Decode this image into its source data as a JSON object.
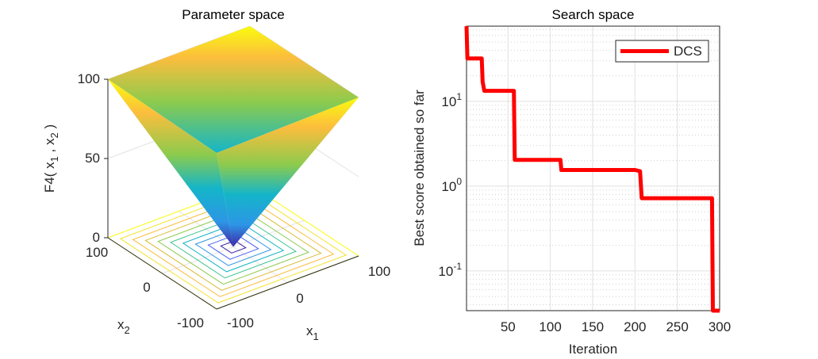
{
  "chart_data": [
    {
      "type": "surface",
      "title": "Parameter space",
      "function": "F4",
      "zlabel_parts": [
        {
          "text": "F4( x",
          "sub": false
        },
        {
          "text": "1",
          "sub": true
        },
        {
          "text": " , x",
          "sub": false
        },
        {
          "text": "2",
          "sub": true
        },
        {
          "text": " )",
          "sub": false
        }
      ],
      "xlabel": {
        "base": "x",
        "sub": "1"
      },
      "ylabel": {
        "base": "x",
        "sub": "2"
      },
      "x1_ticks": [
        "-100",
        "0",
        "100"
      ],
      "x2_ticks": [
        "100",
        "0",
        "-100"
      ],
      "z_ticks": [
        "100",
        "50",
        "0"
      ],
      "xlim": [
        -100,
        100
      ],
      "ylim": [
        -100,
        100
      ],
      "zlim": [
        0,
        100
      ],
      "contour_levels": [
        10,
        20,
        30,
        40,
        50,
        60,
        70,
        80,
        90,
        100
      ],
      "colormap": [
        "#3e26a8",
        "#4760f4",
        "#2d96e6",
        "#14b5c9",
        "#3ac38f",
        "#8ccb4d",
        "#d9ba2f",
        "#fcbd3d",
        "#f3e229",
        "#f9fb0e"
      ]
    },
    {
      "type": "line",
      "title": "Search space",
      "xlabel": "Iteration",
      "ylabel": "Best score obtained so far",
      "yscale": "log",
      "xlim": [
        1,
        300
      ],
      "ylim": [
        0.034,
        77
      ],
      "grid": true,
      "minor_grid": true,
      "xticks": [
        "50",
        "100",
        "150",
        "200",
        "250",
        "300"
      ],
      "yticks": [
        {
          "value": 10,
          "base": "10",
          "exp": "1"
        },
        {
          "value": 1,
          "base": "10",
          "exp": "0"
        },
        {
          "value": 0.1,
          "base": "10",
          "exp": "-1"
        }
      ],
      "legend": {
        "position": "top-right",
        "entries": [
          "DCS"
        ]
      },
      "series": [
        {
          "name": "DCS",
          "color": "#ff0000",
          "x": [
            1,
            2,
            19,
            20,
            22,
            57,
            58,
            112,
            113,
            200,
            206,
            208,
            291,
            292,
            300
          ],
          "y": [
            77,
            32,
            32,
            17,
            13.3,
            13.3,
            2.04,
            2.04,
            1.55,
            1.55,
            1.5,
            0.72,
            0.72,
            0.034,
            0.034
          ]
        }
      ]
    }
  ]
}
